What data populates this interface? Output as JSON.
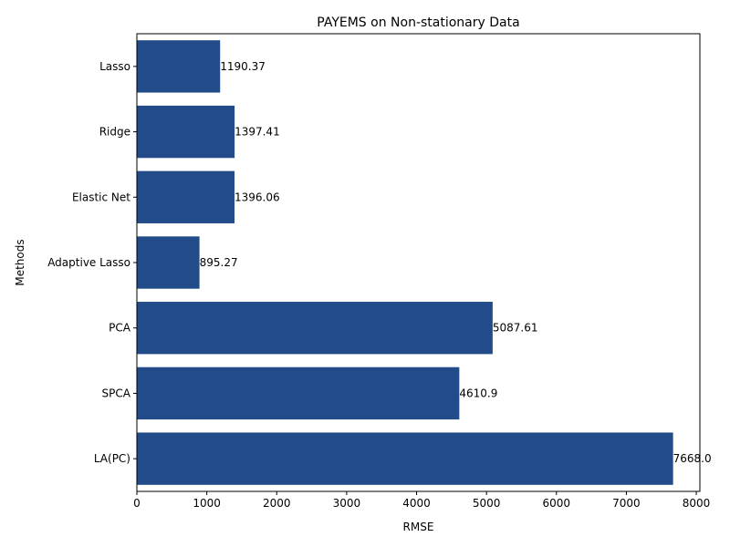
{
  "chart_data": {
    "type": "bar",
    "orientation": "horizontal",
    "title": "PAYEMS on Non-stationary Data",
    "xlabel": "RMSE",
    "ylabel": "Methods",
    "categories": [
      "Lasso",
      "Ridge",
      "Elastic Net",
      "Adaptive Lasso",
      "PCA",
      "SPCA",
      "LA(PC)"
    ],
    "values": [
      1190.37,
      1397.41,
      1396.06,
      895.27,
      5087.61,
      4610.9,
      7668.0
    ],
    "value_labels": [
      "1190.37",
      "1397.41",
      "1396.06",
      "895.27",
      "5087.61",
      "4610.9",
      "7668.0"
    ],
    "xlim": [
      0,
      8051.4
    ],
    "x_ticks": [
      0,
      1000,
      2000,
      3000,
      4000,
      5000,
      6000,
      7000,
      8000
    ],
    "grid": false,
    "bar_color": "#224b8a"
  }
}
